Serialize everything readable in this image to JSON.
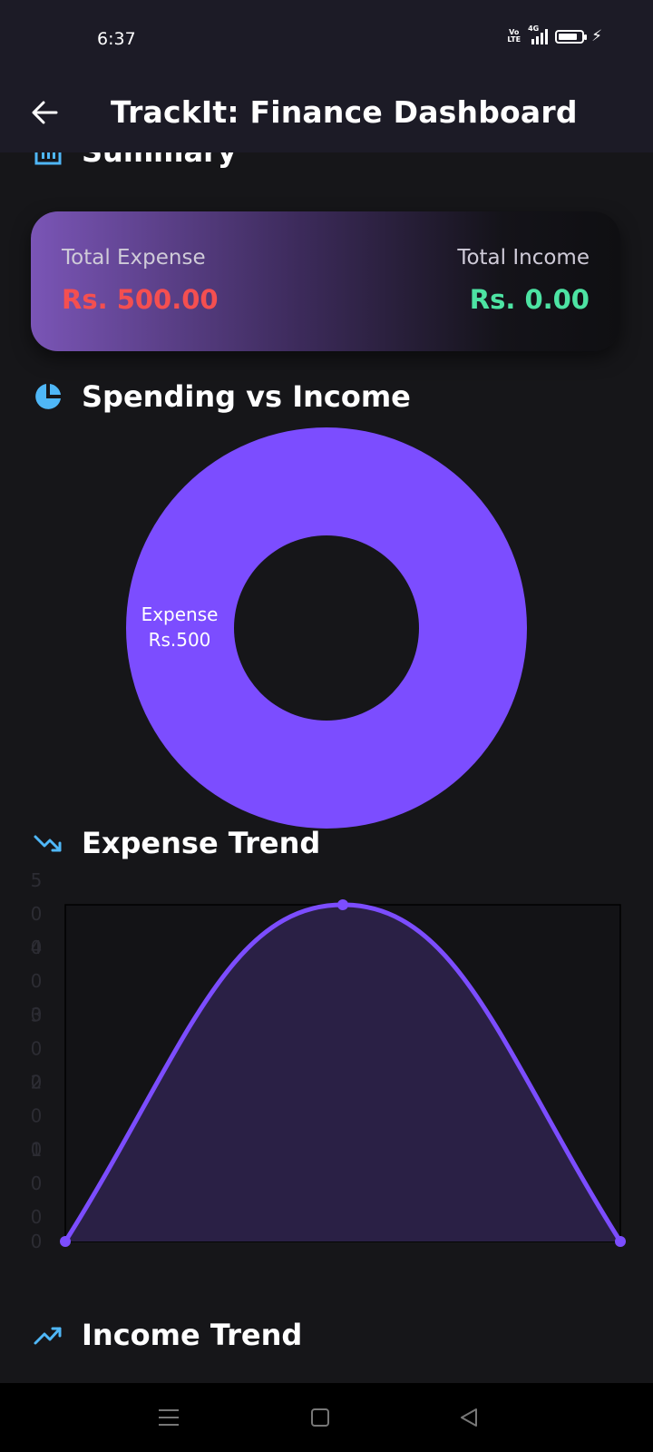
{
  "status_bar": {
    "time": "6:37",
    "network_badge_top": "Vo",
    "network_badge_bottom": "LTE",
    "network_type": "4G",
    "battery_level": 0.85,
    "icons": [
      "volte-icon",
      "signal-icon",
      "battery-icon",
      "charging-icon"
    ]
  },
  "app_bar": {
    "title": "TrackIt: Finance Dashboard",
    "back_icon": "arrow-left-icon"
  },
  "summary": {
    "title": "Summary",
    "icon": "bar-chart-icon",
    "expense_label": "Total Expense",
    "expense_value": "Rs. 500.00",
    "income_label": "Total Income",
    "income_value": "Rs. 0.00",
    "expense_color": "#f44f50",
    "income_color": "#4de3a3"
  },
  "spending_vs_income": {
    "title": "Spending vs Income",
    "icon": "pie-chart-icon",
    "slice_label": "Expense",
    "slice_value": "Rs.500"
  },
  "expense_trend": {
    "title": "Expense Trend",
    "icon": "trending-down-icon"
  },
  "income_trend": {
    "title": "Income Trend",
    "icon": "trending-up-icon"
  },
  "nav_bar": {
    "icons": [
      "menu-icon",
      "home-square-icon",
      "back-triangle-icon"
    ]
  },
  "colors": {
    "accent": "#7c4dff",
    "background": "#161619",
    "app_bar": "#1c1b26",
    "icon_blue": "#4fb7f7"
  },
  "chart_data": [
    {
      "type": "pie",
      "donut": true,
      "title": "Spending vs Income",
      "slices": [
        {
          "name": "Expense",
          "value": 500,
          "label": "Rs.500",
          "color": "#7c4dff"
        }
      ]
    },
    {
      "type": "area",
      "title": "Expense Trend",
      "x": [
        0,
        1,
        2
      ],
      "series": [
        {
          "values": [
            0,
            500,
            0
          ],
          "color": "#7c4dff"
        }
      ],
      "y_tick_labels": [
        "5\n0\n0",
        "4\n0\n0",
        "3\n0\n0",
        "2\n0\n0",
        "1\n0\n0",
        "0"
      ],
      "ylim": [
        0,
        500
      ]
    }
  ]
}
